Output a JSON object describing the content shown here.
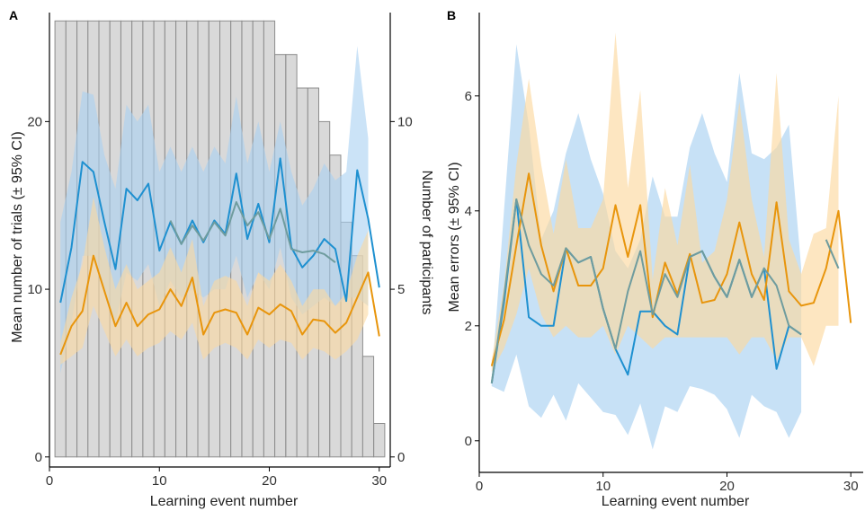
{
  "colors": {
    "blue_line": "#1e90d0",
    "blue_band": "#a9d1f1",
    "orange_line": "#e8950c",
    "orange_band": "#fcd9a0",
    "teal_line": "#6f9c9e",
    "bar_fill": "#d9d9d9",
    "bar_stroke": "#8c8c8c",
    "axis": "#000000"
  },
  "chart_data": [
    {
      "panel": "A",
      "type": "line",
      "xlabel": "Learning event number",
      "ylabel": "Mean number of trials (± 95% CI)",
      "ylabel_right": "Number of participants",
      "xlim": [
        0,
        31
      ],
      "ylim": [
        -0.6,
        26.5
      ],
      "y2lim": [
        -0.3,
        13.25
      ],
      "xticks": [
        0,
        10,
        20,
        30
      ],
      "yticks": [
        0,
        10,
        20
      ],
      "y2ticks": [
        0,
        5,
        10
      ],
      "x_tick_labels": [
        "0",
        "10",
        "20",
        "30"
      ],
      "y_tick_labels": [
        "0",
        "10",
        "20"
      ],
      "y2_tick_labels": [
        "0",
        "5",
        "10"
      ],
      "participants": {
        "x": [
          1,
          2,
          3,
          4,
          5,
          6,
          7,
          8,
          9,
          10,
          11,
          12,
          13,
          14,
          15,
          16,
          17,
          18,
          19,
          20,
          21,
          22,
          23,
          24,
          25,
          26,
          27,
          28,
          29,
          30
        ],
        "values": [
          13,
          13,
          13,
          13,
          13,
          13,
          13,
          13,
          13,
          13,
          13,
          13,
          13,
          13,
          13,
          13,
          13,
          13,
          13,
          13,
          12,
          12,
          11,
          11,
          10,
          9,
          7,
          6,
          3,
          1
        ]
      },
      "series": [
        {
          "color": "blue",
          "x": [
            1,
            2,
            3,
            4,
            5,
            6,
            7,
            8,
            9,
            10,
            11,
            12,
            13,
            14,
            15,
            16,
            17,
            18,
            19,
            20,
            21,
            22,
            23,
            24,
            25,
            26,
            27,
            28,
            29,
            30
          ],
          "y": [
            9.2,
            12.5,
            17.6,
            17.0,
            14.0,
            11.2,
            16.0,
            15.3,
            16.3,
            12.3,
            14.0,
            12.7,
            14.1,
            12.8,
            14.1,
            13.3,
            16.9,
            13.0,
            15.1,
            12.8,
            17.8,
            12.5,
            11.3,
            12.0,
            13.0,
            12.4,
            9.3,
            17.1,
            14.2,
            10.1
          ],
          "lo": [
            5.0,
            8.0,
            12.0,
            12.0,
            10.0,
            8.0,
            11.0,
            10.5,
            11.5,
            9.0,
            10.5,
            9.5,
            10.0,
            9.5,
            10.0,
            10.0,
            12.0,
            9.5,
            11.0,
            10.0,
            12.5,
            9.5,
            8.5,
            9.0,
            9.5,
            9.0,
            9.5,
            9.5,
            9.0,
            null
          ],
          "hi": [
            14.0,
            17.0,
            21.8,
            21.6,
            18.0,
            16.0,
            21.0,
            20.0,
            21.0,
            17.0,
            18.5,
            17.0,
            18.5,
            17.0,
            18.5,
            17.5,
            21.5,
            17.5,
            20.0,
            17.0,
            20.0,
            17.0,
            15.0,
            16.0,
            17.5,
            16.5,
            17.0,
            24.5,
            19.0,
            null
          ]
        },
        {
          "color": "orange",
          "x": [
            1,
            2,
            3,
            4,
            5,
            6,
            7,
            8,
            9,
            10,
            11,
            12,
            13,
            14,
            15,
            16,
            17,
            18,
            19,
            20,
            21,
            22,
            23,
            24,
            25,
            26,
            27,
            28,
            29,
            30
          ],
          "y": [
            6.1,
            7.8,
            8.7,
            12.0,
            9.9,
            7.8,
            9.2,
            7.8,
            8.5,
            8.8,
            10.0,
            9.0,
            10.7,
            7.3,
            8.6,
            8.8,
            8.6,
            7.3,
            8.9,
            8.5,
            9.1,
            8.7,
            7.3,
            8.2,
            8.1,
            7.4,
            8.0,
            9.5,
            11.0,
            7.2
          ],
          "lo": [
            5.5,
            6.0,
            6.5,
            9.0,
            7.5,
            6.0,
            7.0,
            6.0,
            6.5,
            6.8,
            7.5,
            7.0,
            8.0,
            5.8,
            6.5,
            6.8,
            6.5,
            5.8,
            7.0,
            6.5,
            7.0,
            6.8,
            5.8,
            6.5,
            6.3,
            5.8,
            6.3,
            7.0,
            8.5,
            null
          ],
          "hi": [
            6.8,
            9.5,
            11.5,
            15.5,
            12.5,
            10.0,
            11.5,
            10.0,
            10.5,
            11.0,
            12.5,
            11.0,
            13.0,
            9.0,
            10.5,
            10.8,
            10.5,
            9.0,
            11.0,
            10.5,
            11.5,
            10.5,
            9.0,
            10.0,
            10.0,
            9.0,
            9.8,
            12.0,
            13.5,
            null
          ]
        },
        {
          "color": "teal",
          "x": [
            11,
            12,
            13,
            14,
            15,
            16,
            17,
            18,
            19,
            20,
            21,
            22,
            23,
            24,
            25,
            26
          ],
          "y": [
            14.1,
            12.7,
            13.8,
            12.9,
            14.0,
            13.2,
            15.2,
            13.8,
            14.6,
            13.0,
            14.8,
            12.4,
            12.2,
            12.3,
            12.1,
            11.6
          ]
        }
      ]
    },
    {
      "panel": "B",
      "type": "line",
      "xlabel": "Learning event number",
      "ylabel": "Mean errors (± 95% CI)",
      "xlim": [
        0,
        31
      ],
      "ylim": [
        -0.55,
        7.45
      ],
      "xticks": [
        0,
        10,
        20,
        30
      ],
      "yticks": [
        0,
        2,
        4,
        6
      ],
      "x_tick_labels": [
        "0",
        "10",
        "20",
        "30"
      ],
      "y_tick_labels": [
        "0",
        "2",
        "4",
        "6"
      ],
      "series": [
        {
          "color": "blue",
          "x": [
            1,
            2,
            3,
            4,
            5,
            6,
            7,
            8,
            9,
            10,
            11,
            12,
            13,
            14,
            15,
            16,
            17,
            18,
            19,
            20,
            21,
            22,
            23,
            24,
            25,
            26
          ],
          "y": [
            1.0,
            2.4,
            4.2,
            2.15,
            2.0,
            2.0,
            3.35,
            3.1,
            3.2,
            2.3,
            1.6,
            1.15,
            2.25,
            2.25,
            2.0,
            1.85,
            3.2,
            3.3,
            2.85,
            2.5,
            3.15,
            2.5,
            3.0,
            1.25,
            2.0,
            1.85
          ],
          "lo": [
            0.95,
            0.85,
            1.5,
            0.6,
            0.4,
            0.8,
            0.35,
            1.0,
            0.75,
            0.5,
            0.45,
            0.1,
            0.65,
            -0.15,
            0.6,
            0.5,
            0.95,
            0.9,
            0.8,
            0.55,
            0.05,
            0.8,
            0.6,
            0.5,
            0.05,
            0.5
          ],
          "hi": [
            1.05,
            4.0,
            6.9,
            5.5,
            3.5,
            4.0,
            5.0,
            5.7,
            4.9,
            4.3,
            3.3,
            3.0,
            3.5,
            4.6,
            3.9,
            3.9,
            5.1,
            5.7,
            5.0,
            4.5,
            6.4,
            5.0,
            4.9,
            5.1,
            5.5,
            3.0
          ]
        },
        {
          "color": "orange",
          "x": [
            1,
            2,
            3,
            4,
            5,
            6,
            7,
            8,
            9,
            10,
            11,
            12,
            13,
            14,
            15,
            16,
            17,
            18,
            19,
            20,
            21,
            22,
            23,
            24,
            25,
            26,
            27,
            28,
            29,
            30
          ],
          "y": [
            1.3,
            2.1,
            3.4,
            4.65,
            3.4,
            2.6,
            3.35,
            2.7,
            2.7,
            3.0,
            4.1,
            3.2,
            4.1,
            2.15,
            3.1,
            2.55,
            3.25,
            2.4,
            2.45,
            2.9,
            3.8,
            2.9,
            2.45,
            4.15,
            2.6,
            2.35,
            2.4,
            3.0,
            4.0,
            2.05
          ],
          "lo": [
            1.2,
            1.6,
            2.2,
            3.0,
            2.2,
            1.8,
            2.0,
            1.8,
            1.8,
            2.0,
            1.5,
            2.0,
            1.8,
            1.6,
            1.8,
            1.8,
            1.8,
            1.8,
            1.8,
            1.8,
            1.5,
            1.8,
            1.8,
            1.4,
            1.8,
            1.8,
            1.3,
            2.0,
            2.0,
            null
          ],
          "hi": [
            1.4,
            2.7,
            4.8,
            6.3,
            4.8,
            3.6,
            4.9,
            3.7,
            3.7,
            4.2,
            7.1,
            4.4,
            6.1,
            2.8,
            4.4,
            3.4,
            4.8,
            3.1,
            3.3,
            4.2,
            5.9,
            4.2,
            3.2,
            6.4,
            3.5,
            2.9,
            3.6,
            3.7,
            6.0,
            null
          ]
        },
        {
          "color": "teal",
          "x": [
            1,
            2,
            3,
            4,
            5,
            6,
            7,
            8,
            9,
            10,
            11,
            12,
            13,
            14,
            15,
            16,
            17,
            18,
            19,
            20,
            21,
            22,
            23,
            24,
            25,
            26,
            28,
            29
          ],
          "y": [
            1.0,
            2.5,
            4.2,
            3.4,
            2.9,
            2.7,
            3.35,
            3.1,
            3.2,
            2.3,
            1.6,
            2.6,
            3.3,
            2.2,
            2.9,
            2.5,
            3.2,
            3.3,
            2.85,
            2.5,
            3.15,
            2.5,
            3.0,
            2.7,
            2.0,
            1.85,
            3.5,
            3.0
          ],
          "gap_after_x": 26
        }
      ]
    }
  ]
}
